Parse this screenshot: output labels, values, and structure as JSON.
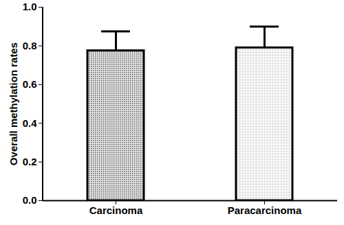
{
  "chart_data": {
    "type": "bar",
    "categories": [
      "Carcinoma",
      "Paracarcinoma"
    ],
    "values": [
      0.775,
      0.79
    ],
    "errors": [
      0.1,
      0.11
    ],
    "colors": [
      "#555555",
      "#aaaaaa"
    ],
    "y_label": "Overall methylation rates",
    "ylim": [
      0,
      1
    ],
    "yticks": [
      {
        "value": 0,
        "label": "0.0"
      },
      0.2,
      0.4,
      0.6,
      0.8,
      {
        "value": 1,
        "label": "1.0"
      }
    ]
  }
}
